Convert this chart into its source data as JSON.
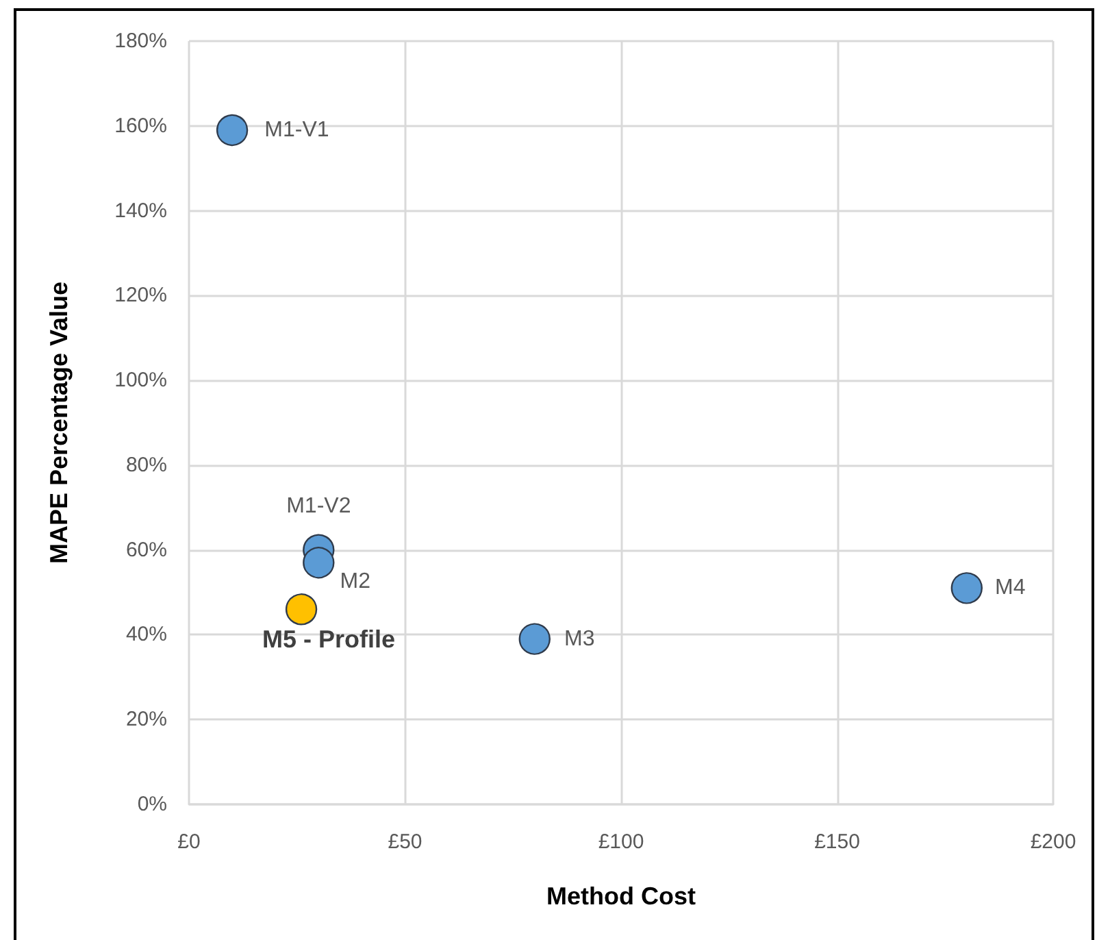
{
  "chart_data": {
    "type": "scatter",
    "xlabel": "Method Cost",
    "ylabel": "MAPE Percentage Value",
    "xlim": [
      0,
      200
    ],
    "xticks": [
      {
        "value": 0,
        "label": "£0"
      },
      {
        "value": 50,
        "label": "£50"
      },
      {
        "value": 100,
        "label": "£100"
      },
      {
        "value": 150,
        "label": "£150"
      },
      {
        "value": 200,
        "label": "£200"
      }
    ],
    "ylim": [
      0,
      180
    ],
    "yticks": [
      {
        "value": 0,
        "label": "0%"
      },
      {
        "value": 20,
        "label": "20%"
      },
      {
        "value": 40,
        "label": "40%"
      },
      {
        "value": 60,
        "label": "60%"
      },
      {
        "value": 80,
        "label": "80%"
      },
      {
        "value": 100,
        "label": "100%"
      },
      {
        "value": 120,
        "label": "120%"
      },
      {
        "value": 140,
        "label": "140%"
      },
      {
        "value": 160,
        "label": "160%"
      },
      {
        "value": 180,
        "label": "180%"
      }
    ],
    "grid": true,
    "legend": false,
    "marker": "circle",
    "series": [
      {
        "name": "M1-V1",
        "color": "#5b9bd5",
        "x": [
          10
        ],
        "values": [
          159
        ]
      },
      {
        "name": "M1-V2",
        "color": "#5b9bd5",
        "x": [
          30
        ],
        "values": [
          60
        ]
      },
      {
        "name": "M2",
        "color": "#5b9bd5",
        "x": [
          30
        ],
        "values": [
          57
        ]
      },
      {
        "name": "M5 - Profile",
        "color": "#ffc000",
        "x": [
          26
        ],
        "values": [
          46
        ]
      },
      {
        "name": "M3",
        "color": "#5b9bd5",
        "x": [
          80
        ],
        "values": [
          39
        ]
      },
      {
        "name": "M4",
        "color": "#5b9bd5",
        "x": [
          180
        ],
        "values": [
          51
        ]
      }
    ]
  }
}
